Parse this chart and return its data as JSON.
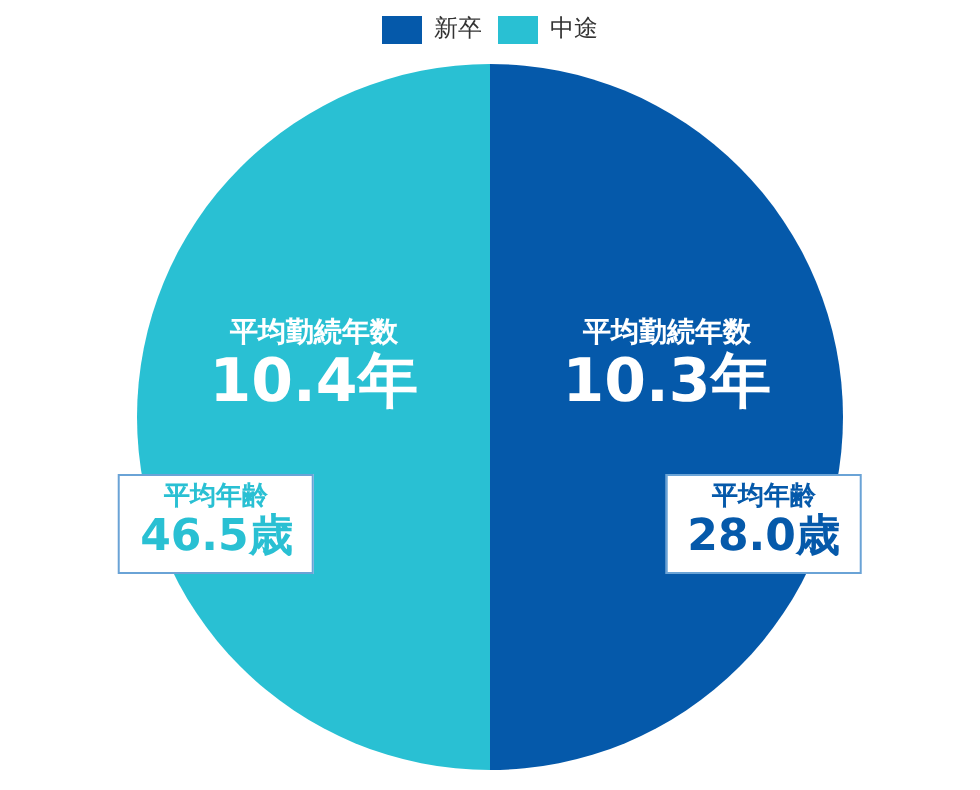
{
  "chart_data": {
    "type": "pie",
    "categories": [
      "新卒",
      "中途"
    ],
    "values": [
      50,
      50
    ],
    "colors": [
      "#0559aa",
      "#29c0d3"
    ],
    "legend": "top",
    "annotations": [
      {
        "text": "平均勤続年数\n10.3年",
        "x": "新卒"
      },
      {
        "text": "平均年齢\n28.0歳",
        "x": "新卒"
      },
      {
        "text": "平均勤続年数\n10.4年",
        "x": "中途"
      },
      {
        "text": "平均年齢\n46.5歳",
        "x": "中途"
      }
    ]
  }
}
